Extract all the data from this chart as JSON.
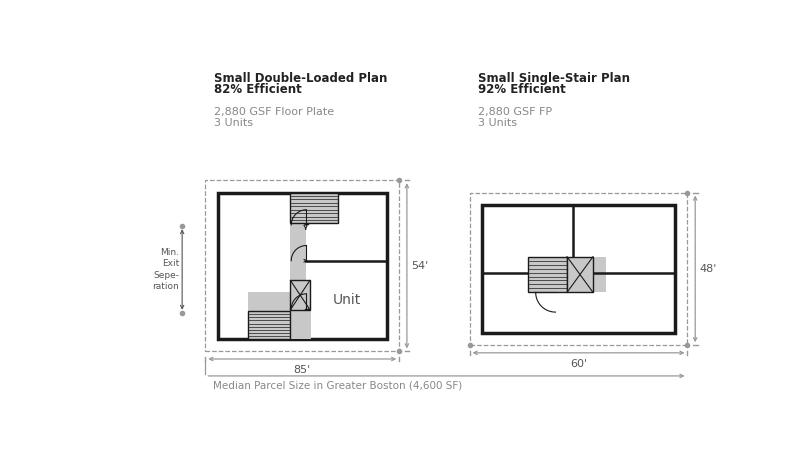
{
  "bg_color": "#ffffff",
  "line_color": "#1a1a1a",
  "gray_fill": "#c8c8c8",
  "dashed_color": "#999999",
  "text_dark": "#222222",
  "text_gray": "#888888",
  "text_dim": "#555555",
  "left_plan": {
    "title_line1": "Small Double-Loaded Plan",
    "title_line2": "82% Efficient",
    "subtitle1": "2,880 GSF Floor Plate",
    "subtitle2": "3 Units",
    "dim_w": "85'",
    "dim_h": "54'",
    "label_unit": "Unit"
  },
  "right_plan": {
    "title_line1": "Small Single-Stair Plan",
    "title_line2": "92% Efficient",
    "subtitle1": "2,880 GSF FP",
    "subtitle2": "3 Units",
    "dim_w": "60'",
    "dim_h": "48'"
  },
  "bottom_label": "Median Parcel Size in Greater Boston (4,600 SF)",
  "left_label_lines": [
    "Min.",
    "Exit",
    "Sepe-",
    "ration"
  ]
}
